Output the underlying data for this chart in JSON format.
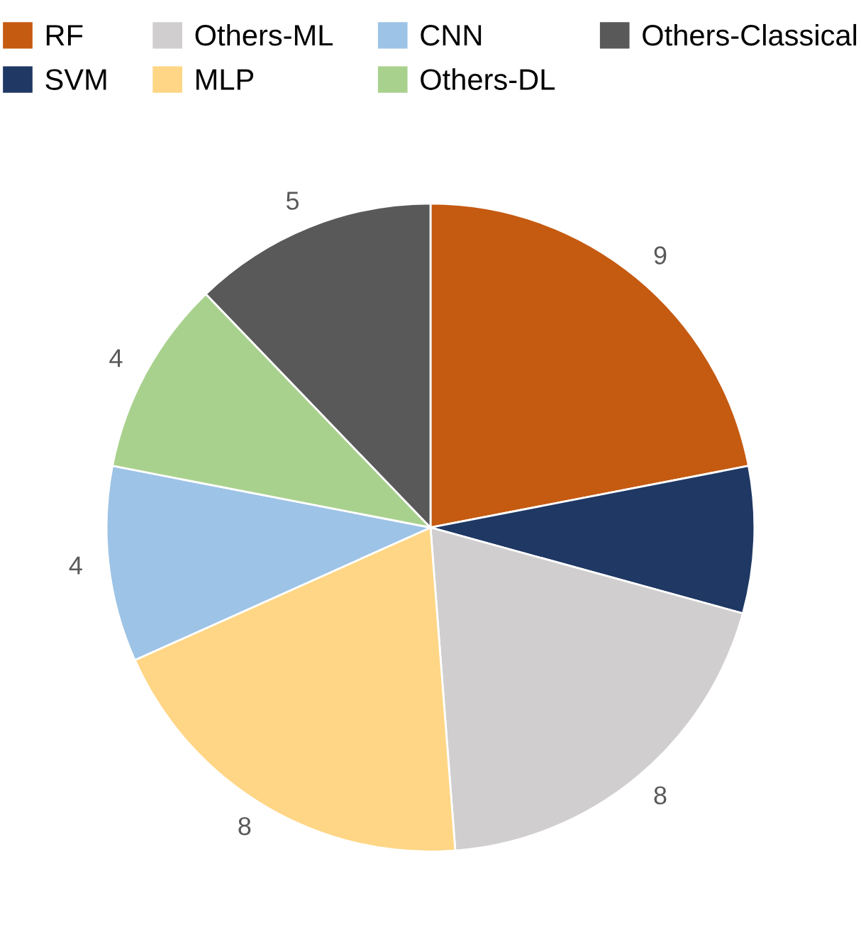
{
  "chart_data": {
    "type": "pie",
    "categories": [
      "RF",
      "SVM",
      "Others-ML",
      "MLP",
      "CNN",
      "Others-DL",
      "Others-Classical"
    ],
    "values": [
      9,
      3,
      8,
      8,
      4,
      4,
      5
    ],
    "colors": [
      "#c55a11",
      "#1f3864",
      "#d0cece",
      "#ffd685",
      "#9dc3e6",
      "#a9d18e",
      "#595959"
    ],
    "value_labels": [
      "9",
      null,
      "8",
      "8",
      "4",
      "4",
      "5"
    ],
    "legend": "top"
  }
}
